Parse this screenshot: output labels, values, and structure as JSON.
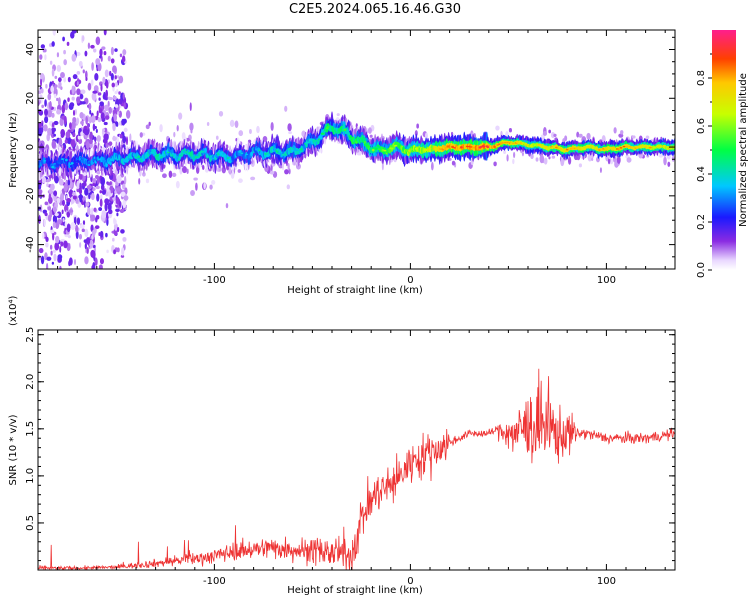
{
  "title": "C2E5.2024.065.16.46.G30",
  "chart_data": [
    {
      "type": "heatmap",
      "xlabel": "Height of straight line (km)",
      "ylabel": "Frequency (Hz)",
      "xlim": [
        -190,
        135
      ],
      "ylim": [
        -50,
        48
      ],
      "xticks": [
        -100,
        0,
        100
      ],
      "yticks": [
        -40,
        -20,
        0,
        20,
        40
      ],
      "ridge": {
        "x": [
          -190,
          -170,
          -150,
          -130,
          -110,
          -90,
          -80,
          -70,
          -60,
          -50,
          -40,
          -35,
          -30,
          -20,
          -15,
          -10,
          0,
          10,
          20,
          30,
          40,
          50,
          60,
          70,
          80,
          90,
          100,
          110,
          120,
          135
        ],
        "y": [
          -7,
          -6,
          -5,
          -3,
          -3,
          -4,
          -2,
          -2,
          -2,
          2,
          8,
          7,
          4,
          0,
          -2,
          0,
          -1,
          -1,
          0,
          0,
          0,
          2,
          1,
          0,
          -1,
          0,
          -1,
          0,
          0,
          0
        ],
        "amplitude": [
          0.3,
          0.3,
          0.35,
          0.4,
          0.4,
          0.35,
          0.35,
          0.4,
          0.4,
          0.4,
          0.5,
          0.5,
          0.5,
          0.55,
          0.55,
          0.6,
          0.65,
          0.7,
          0.85,
          0.85,
          0.9,
          0.8,
          0.7,
          0.75,
          0.8,
          0.75,
          0.8,
          0.8,
          0.75,
          0.7
        ]
      },
      "colorbar": {
        "label": "Normalized spectral amplitude",
        "range": [
          0,
          1
        ],
        "ticks": [
          "0.0",
          "0.2",
          "0.4",
          "0.6",
          "0.8"
        ]
      }
    },
    {
      "type": "line",
      "xlabel": "Height of straight line (km)",
      "ylabel": "SNR (10 * v/v)",
      "multiplier": "(x10⁴)",
      "xlim": [
        -190,
        135
      ],
      "ylim": [
        0,
        2.55
      ],
      "xticks": [
        -100,
        0,
        100
      ],
      "yticks": [
        0.5,
        1.0,
        1.5,
        2.0,
        2.5
      ],
      "color": "#ee3333",
      "series": [
        {
          "x": [
            -190,
            -170,
            -150,
            -140,
            -130,
            -120,
            -110,
            -100,
            -90,
            -80,
            -70,
            -60,
            -50,
            -40,
            -30,
            -25,
            -20,
            -15,
            -10,
            -5,
            0,
            10,
            20,
            30,
            40,
            45,
            50,
            55,
            60,
            65,
            70,
            75,
            80,
            90,
            100,
            110,
            120,
            135
          ],
          "y": [
            0.02,
            0.02,
            0.03,
            0.05,
            0.07,
            0.1,
            0.12,
            0.15,
            0.2,
            0.22,
            0.24,
            0.22,
            0.2,
            0.18,
            0.15,
            0.55,
            0.75,
            0.85,
            0.9,
            1.0,
            1.15,
            1.25,
            1.35,
            1.45,
            1.45,
            1.5,
            1.45,
            1.45,
            1.55,
            1.5,
            1.5,
            1.45,
            1.45,
            1.45,
            1.4,
            1.4,
            1.4,
            1.45
          ]
        }
      ]
    }
  ]
}
